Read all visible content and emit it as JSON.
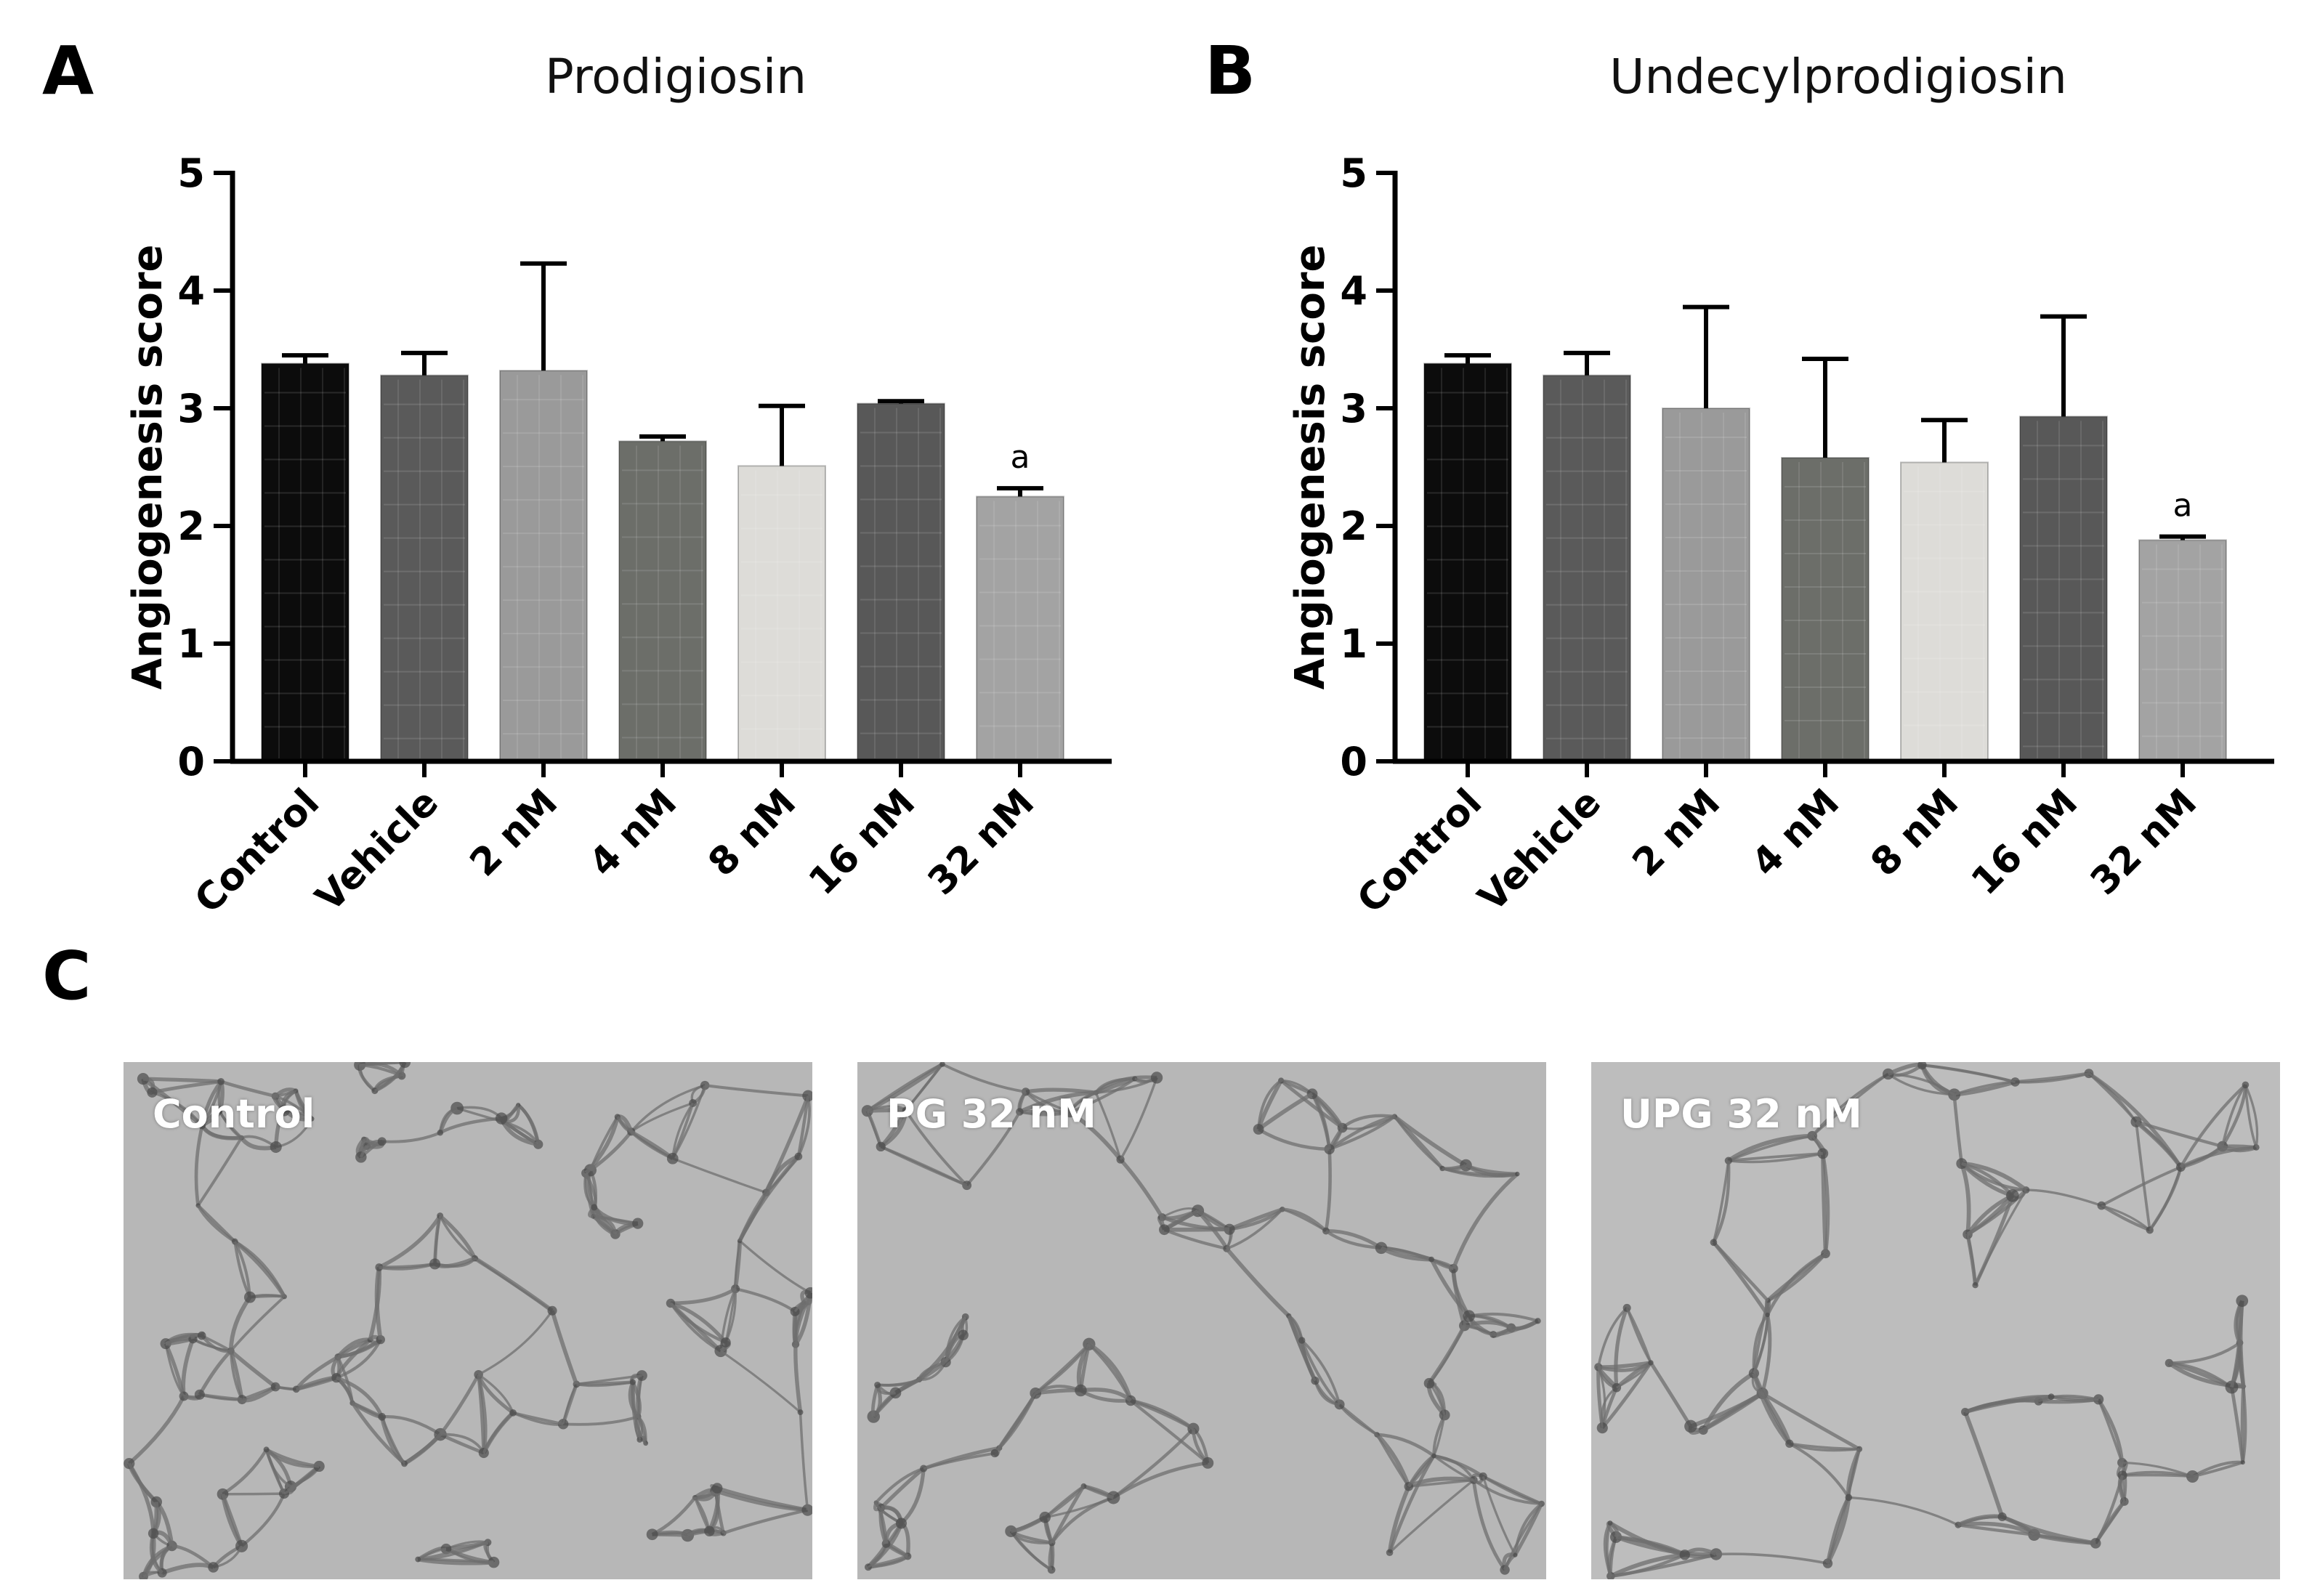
{
  "panels": {
    "a": "A",
    "b": "B",
    "c": "C"
  },
  "chart_data": [
    {
      "type": "bar",
      "title": "Prodigiosin",
      "xlabel": "",
      "ylabel": "Angiogenesis score",
      "ylim": [
        0,
        5
      ],
      "yticks": [
        "0",
        "1",
        "2",
        "3",
        "4",
        "5"
      ],
      "categories": [
        "Control",
        "Vehicle",
        "2 nM",
        "4 nM",
        "8 nM",
        "16 nM",
        "32 nM"
      ],
      "values": [
        3.38,
        3.28,
        3.32,
        2.72,
        2.51,
        3.04,
        2.25
      ],
      "errors": [
        0.07,
        0.19,
        0.91,
        0.04,
        0.51,
        0.02,
        0.07
      ],
      "annotations": [
        "",
        "",
        "",
        "",
        "",
        "",
        "a"
      ],
      "bar_colors": [
        "#0c0c0c",
        "#5a5a5a",
        "#9a9a9a",
        "#6c6e69",
        "#dddcd8",
        "#585858",
        "#a3a3a3"
      ],
      "grid": false
    },
    {
      "type": "bar",
      "title": "Undecylprodigiosin",
      "xlabel": "",
      "ylabel": "Angiogenesis score",
      "ylim": [
        0,
        5
      ],
      "yticks": [
        "0",
        "1",
        "2",
        "3",
        "4",
        "5"
      ],
      "categories": [
        "Control",
        "Vehicle",
        "2 nM",
        "4 nM",
        "8 nM",
        "16 nM",
        "32 nM"
      ],
      "values": [
        3.38,
        3.28,
        3.0,
        2.58,
        2.54,
        2.93,
        1.88
      ],
      "errors": [
        0.07,
        0.19,
        0.86,
        0.84,
        0.36,
        0.85,
        0.03
      ],
      "annotations": [
        "",
        "",
        "",
        "",
        "",
        "",
        "a"
      ],
      "bar_colors": [
        "#0c0c0c",
        "#5a5a5a",
        "#9a9a9a",
        "#6c6e69",
        "#dddcd8",
        "#585858",
        "#a3a3a3"
      ],
      "grid": false
    }
  ],
  "micrographs": [
    {
      "label": "Control"
    },
    {
      "label": "PG 32 nM"
    },
    {
      "label": "UPG 32 nM"
    }
  ]
}
